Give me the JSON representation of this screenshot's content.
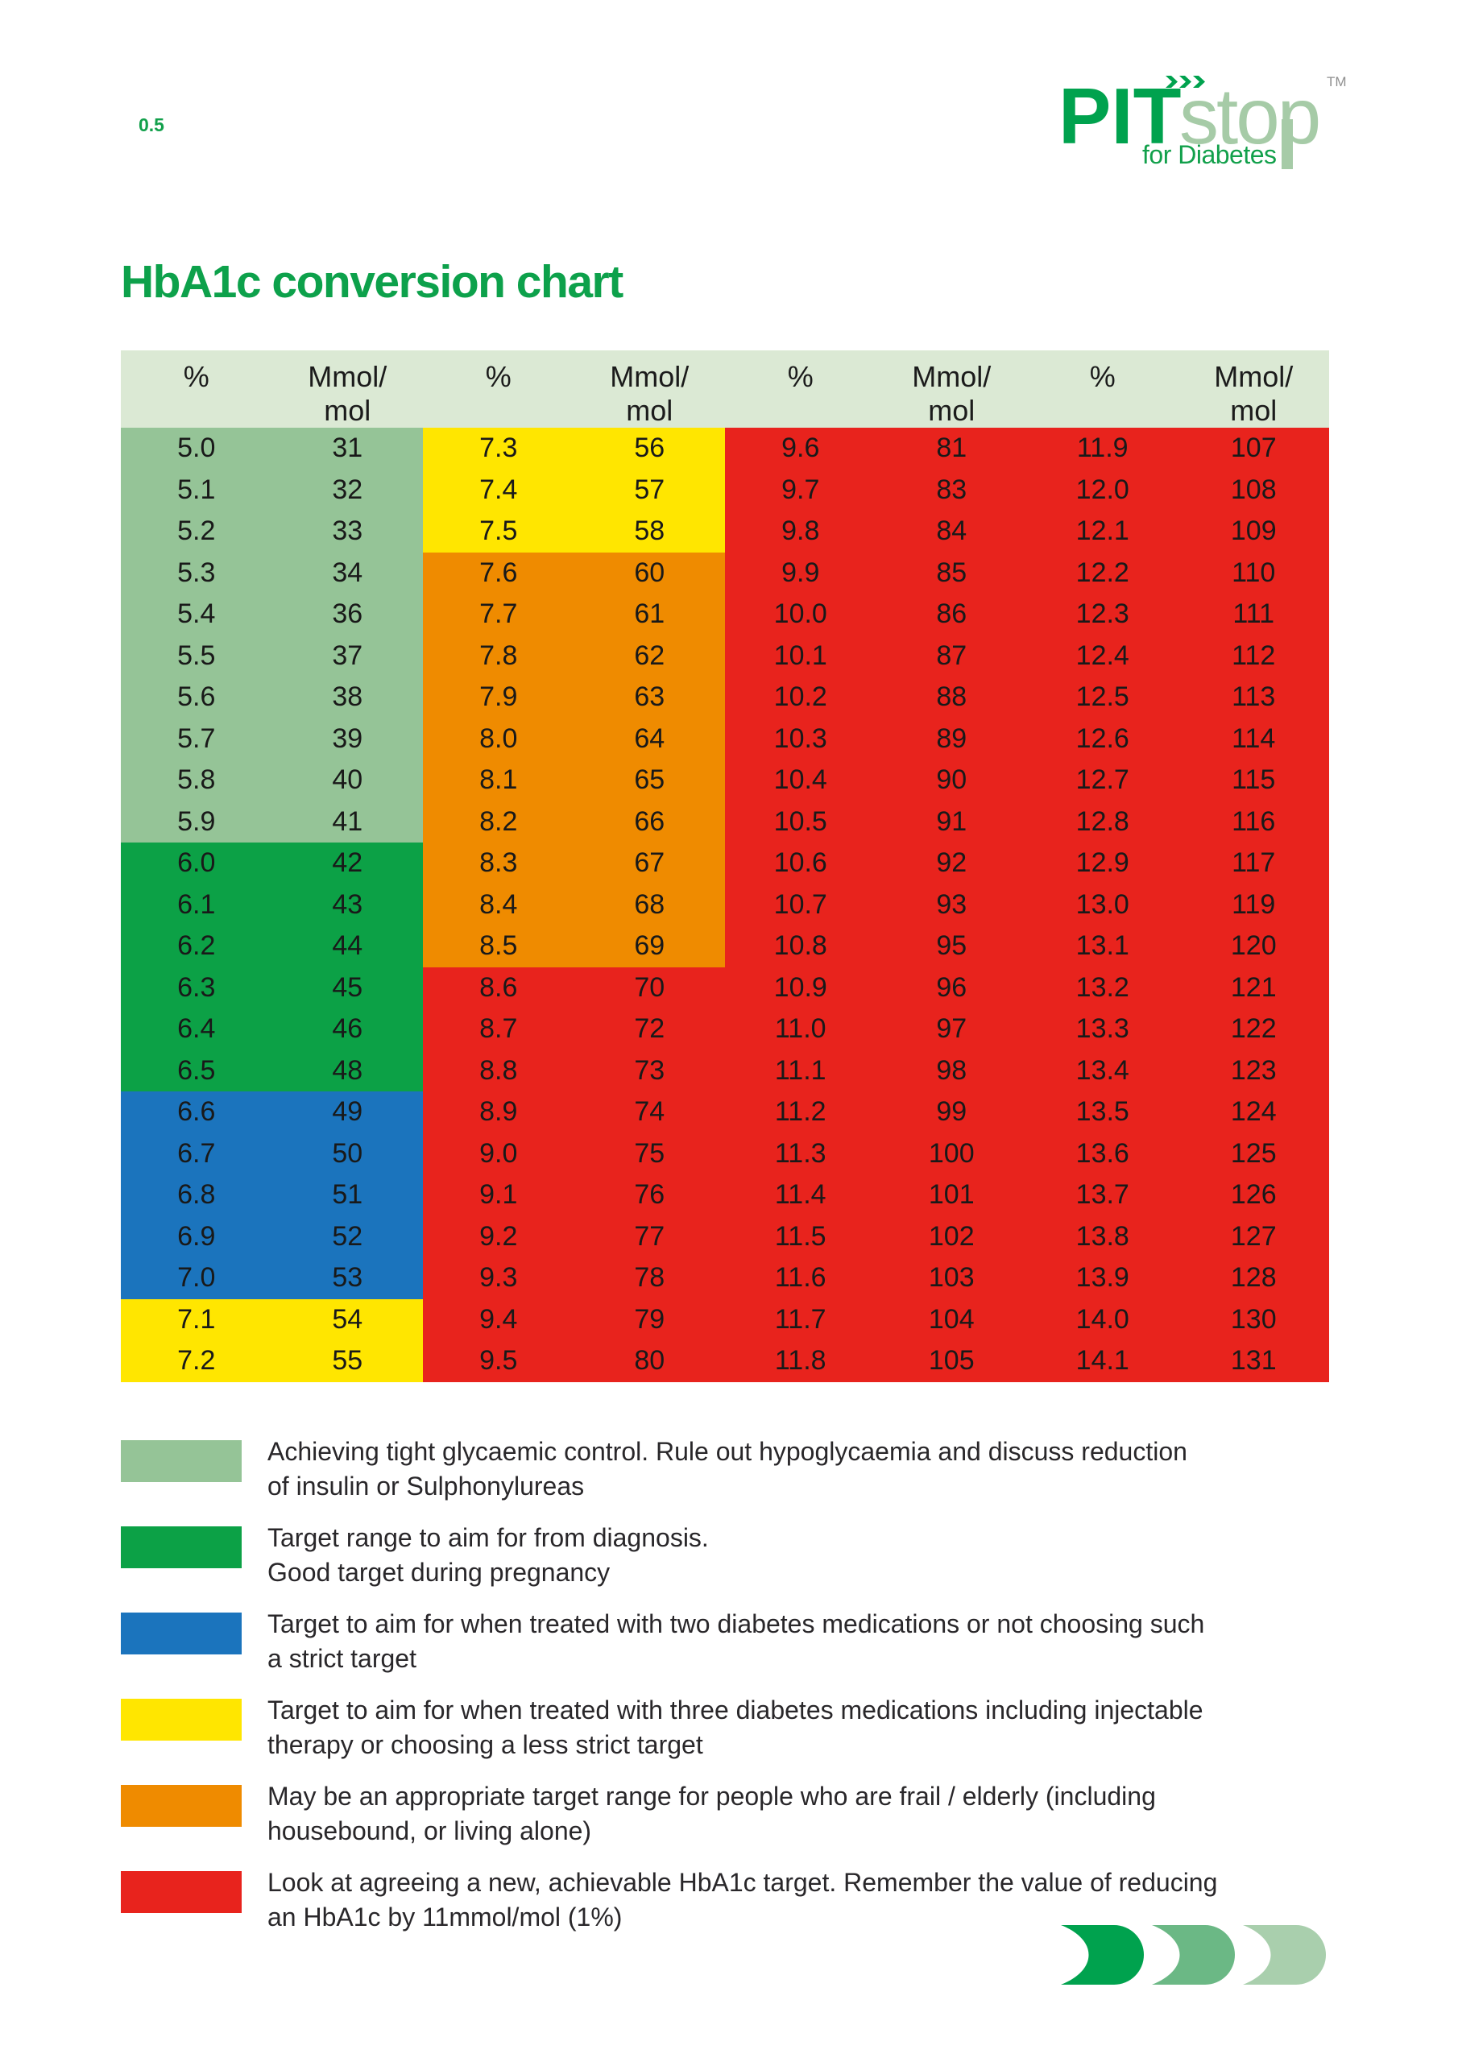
{
  "page_label": "0.5",
  "logo": {
    "pit": "PIT",
    "stop": "stop",
    "tm": "TM",
    "tagline": "for Diabetes"
  },
  "title": "HbA1c conversion chart",
  "colors": {
    "brand_dark_green": "#00a24e",
    "brand_light_green": "#a6cba7",
    "brand_green": "#12a04b",
    "title_green": "#0da14b",
    "bands": {
      "header": "#dbe9d4",
      "light-green": "#95c497",
      "dark-green": "#0ca146",
      "blue": "#1b74bd",
      "yellow": "#ffe600",
      "orange": "#ef8b00",
      "red": "#e8231d"
    },
    "swoosh": [
      "#00a24e",
      "#6bb885",
      "#a9cfad"
    ]
  },
  "table": {
    "header": {
      "pct": "%",
      "mmol": [
        "Mmol/",
        "mol"
      ]
    },
    "pairs": [
      {
        "rows": [
          [
            "5.0",
            "31",
            "light-green"
          ],
          [
            "5.1",
            "32",
            "light-green"
          ],
          [
            "5.2",
            "33",
            "light-green"
          ],
          [
            "5.3",
            "34",
            "light-green"
          ],
          [
            "5.4",
            "36",
            "light-green"
          ],
          [
            "5.5",
            "37",
            "light-green"
          ],
          [
            "5.6",
            "38",
            "light-green"
          ],
          [
            "5.7",
            "39",
            "light-green"
          ],
          [
            "5.8",
            "40",
            "light-green"
          ],
          [
            "5.9",
            "41",
            "light-green"
          ],
          [
            "6.0",
            "42",
            "dark-green"
          ],
          [
            "6.1",
            "43",
            "dark-green"
          ],
          [
            "6.2",
            "44",
            "dark-green"
          ],
          [
            "6.3",
            "45",
            "dark-green"
          ],
          [
            "6.4",
            "46",
            "dark-green"
          ],
          [
            "6.5",
            "48",
            "dark-green"
          ],
          [
            "6.6",
            "49",
            "blue"
          ],
          [
            "6.7",
            "50",
            "blue"
          ],
          [
            "6.8",
            "51",
            "blue"
          ],
          [
            "6.9",
            "52",
            "blue"
          ],
          [
            "7.0",
            "53",
            "blue"
          ],
          [
            "7.1",
            "54",
            "yellow"
          ],
          [
            "7.2",
            "55",
            "yellow"
          ]
        ]
      },
      {
        "rows": [
          [
            "7.3",
            "56",
            "yellow"
          ],
          [
            "7.4",
            "57",
            "yellow"
          ],
          [
            "7.5",
            "58",
            "yellow"
          ],
          [
            "7.6",
            "60",
            "orange"
          ],
          [
            "7.7",
            "61",
            "orange"
          ],
          [
            "7.8",
            "62",
            "orange"
          ],
          [
            "7.9",
            "63",
            "orange"
          ],
          [
            "8.0",
            "64",
            "orange"
          ],
          [
            "8.1",
            "65",
            "orange"
          ],
          [
            "8.2",
            "66",
            "orange"
          ],
          [
            "8.3",
            "67",
            "orange"
          ],
          [
            "8.4",
            "68",
            "orange"
          ],
          [
            "8.5",
            "69",
            "orange"
          ],
          [
            "8.6",
            "70",
            "red"
          ],
          [
            "8.7",
            "72",
            "red"
          ],
          [
            "8.8",
            "73",
            "red"
          ],
          [
            "8.9",
            "74",
            "red"
          ],
          [
            "9.0",
            "75",
            "red"
          ],
          [
            "9.1",
            "76",
            "red"
          ],
          [
            "9.2",
            "77",
            "red"
          ],
          [
            "9.3",
            "78",
            "red"
          ],
          [
            "9.4",
            "79",
            "red"
          ],
          [
            "9.5",
            "80",
            "red"
          ]
        ]
      },
      {
        "rows": [
          [
            "9.6",
            "81",
            "red"
          ],
          [
            "9.7",
            "83",
            "red"
          ],
          [
            "9.8",
            "84",
            "red"
          ],
          [
            "9.9",
            "85",
            "red"
          ],
          [
            "10.0",
            "86",
            "red"
          ],
          [
            "10.1",
            "87",
            "red"
          ],
          [
            "10.2",
            "88",
            "red"
          ],
          [
            "10.3",
            "89",
            "red"
          ],
          [
            "10.4",
            "90",
            "red"
          ],
          [
            "10.5",
            "91",
            "red"
          ],
          [
            "10.6",
            "92",
            "red"
          ],
          [
            "10.7",
            "93",
            "red"
          ],
          [
            "10.8",
            "95",
            "red"
          ],
          [
            "10.9",
            "96",
            "red"
          ],
          [
            "11.0",
            "97",
            "red"
          ],
          [
            "11.1",
            "98",
            "red"
          ],
          [
            "11.2",
            "99",
            "red"
          ],
          [
            "11.3",
            "100",
            "red"
          ],
          [
            "11.4",
            "101",
            "red"
          ],
          [
            "11.5",
            "102",
            "red"
          ],
          [
            "11.6",
            "103",
            "red"
          ],
          [
            "11.7",
            "104",
            "red"
          ],
          [
            "11.8",
            "105",
            "red"
          ]
        ]
      },
      {
        "rows": [
          [
            "11.9",
            "107",
            "red"
          ],
          [
            "12.0",
            "108",
            "red"
          ],
          [
            "12.1",
            "109",
            "red"
          ],
          [
            "12.2",
            "110",
            "red"
          ],
          [
            "12.3",
            "111",
            "red"
          ],
          [
            "12.4",
            "112",
            "red"
          ],
          [
            "12.5",
            "113",
            "red"
          ],
          [
            "12.6",
            "114",
            "red"
          ],
          [
            "12.7",
            "115",
            "red"
          ],
          [
            "12.8",
            "116",
            "red"
          ],
          [
            "12.9",
            "117",
            "red"
          ],
          [
            "13.0",
            "119",
            "red"
          ],
          [
            "13.1",
            "120",
            "red"
          ],
          [
            "13.2",
            "121",
            "red"
          ],
          [
            "13.3",
            "122",
            "red"
          ],
          [
            "13.4",
            "123",
            "red"
          ],
          [
            "13.5",
            "124",
            "red"
          ],
          [
            "13.6",
            "125",
            "red"
          ],
          [
            "13.7",
            "126",
            "red"
          ],
          [
            "13.8",
            "127",
            "red"
          ],
          [
            "13.9",
            "128",
            "red"
          ],
          [
            "14.0",
            "130",
            "red"
          ],
          [
            "14.1",
            "131",
            "red"
          ]
        ]
      }
    ]
  },
  "legend": [
    {
      "band": "light-green",
      "lines": [
        "Achieving tight glycaemic control. Rule out hypoglycaemia and discuss reduction",
        "of insulin or Sulphonylureas"
      ]
    },
    {
      "band": "dark-green",
      "lines": [
        "Target range to aim for from diagnosis.",
        "Good target during pregnancy"
      ]
    },
    {
      "band": "blue",
      "lines": [
        "Target to aim for when treated with two diabetes medications or not choosing such",
        "a strict target"
      ]
    },
    {
      "band": "yellow",
      "lines": [
        "Target to aim for when treated with three diabetes medications including injectable",
        "therapy or choosing a less strict target"
      ]
    },
    {
      "band": "orange",
      "lines": [
        "May be an appropriate target range for people who are frail / elderly (including",
        "housebound, or living alone)"
      ]
    },
    {
      "band": "red",
      "lines": [
        "Look at agreeing a new, achievable HbA1c target. Remember the value of reducing",
        "an HbA1c by 11mmol/mol (1%)"
      ]
    }
  ]
}
